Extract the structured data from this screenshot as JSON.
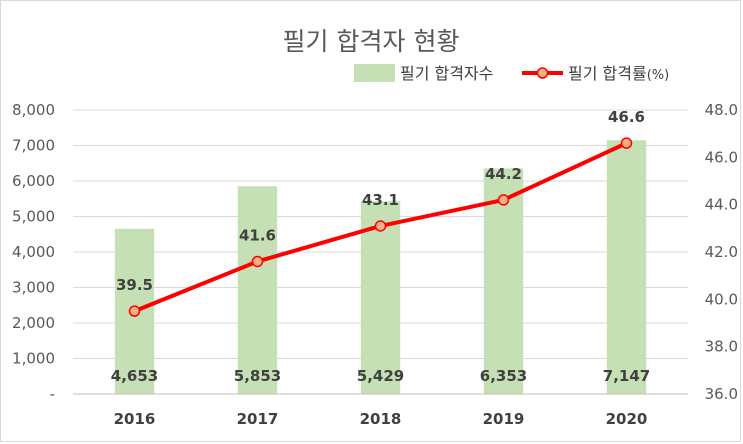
{
  "chart_data": {
    "type": "bar+line",
    "title": "필기 합격자 현황",
    "categories": [
      "2016",
      "2017",
      "2018",
      "2019",
      "2020"
    ],
    "series": [
      {
        "name": "필기 합격자수",
        "type": "bar",
        "axis": "left",
        "color": "#c5e0b4",
        "values": [
          4653,
          5853,
          5429,
          6353,
          7147
        ],
        "labels": [
          "4,653",
          "5,853",
          "5,429",
          "6,353",
          "7,147"
        ]
      },
      {
        "name": "필기 합격률",
        "name_suffix": "(%)",
        "type": "line",
        "axis": "right",
        "color": "#ff0000",
        "marker_fill": "#f4b183",
        "values": [
          39.5,
          41.6,
          43.1,
          44.2,
          46.6
        ],
        "labels": [
          "39.5",
          "41.6",
          "43.1",
          "44.2",
          "46.6"
        ]
      }
    ],
    "y_left": {
      "ylim": [
        0,
        8000
      ],
      "ticks": [
        0,
        1000,
        2000,
        3000,
        4000,
        5000,
        6000,
        7000,
        8000
      ],
      "tick_labels": [
        "-",
        "1,000",
        "2,000",
        "3,000",
        "4,000",
        "5,000",
        "6,000",
        "7,000",
        "8,000"
      ]
    },
    "y_right": {
      "ylim": [
        36.0,
        48.0
      ],
      "ticks": [
        36,
        38,
        40,
        42,
        44,
        46,
        48
      ],
      "tick_labels": [
        "36.0",
        "38.0",
        "40.0",
        "42.0",
        "44.0",
        "46.0",
        "48.0"
      ]
    },
    "grid": true,
    "legend_position": "top-right"
  }
}
